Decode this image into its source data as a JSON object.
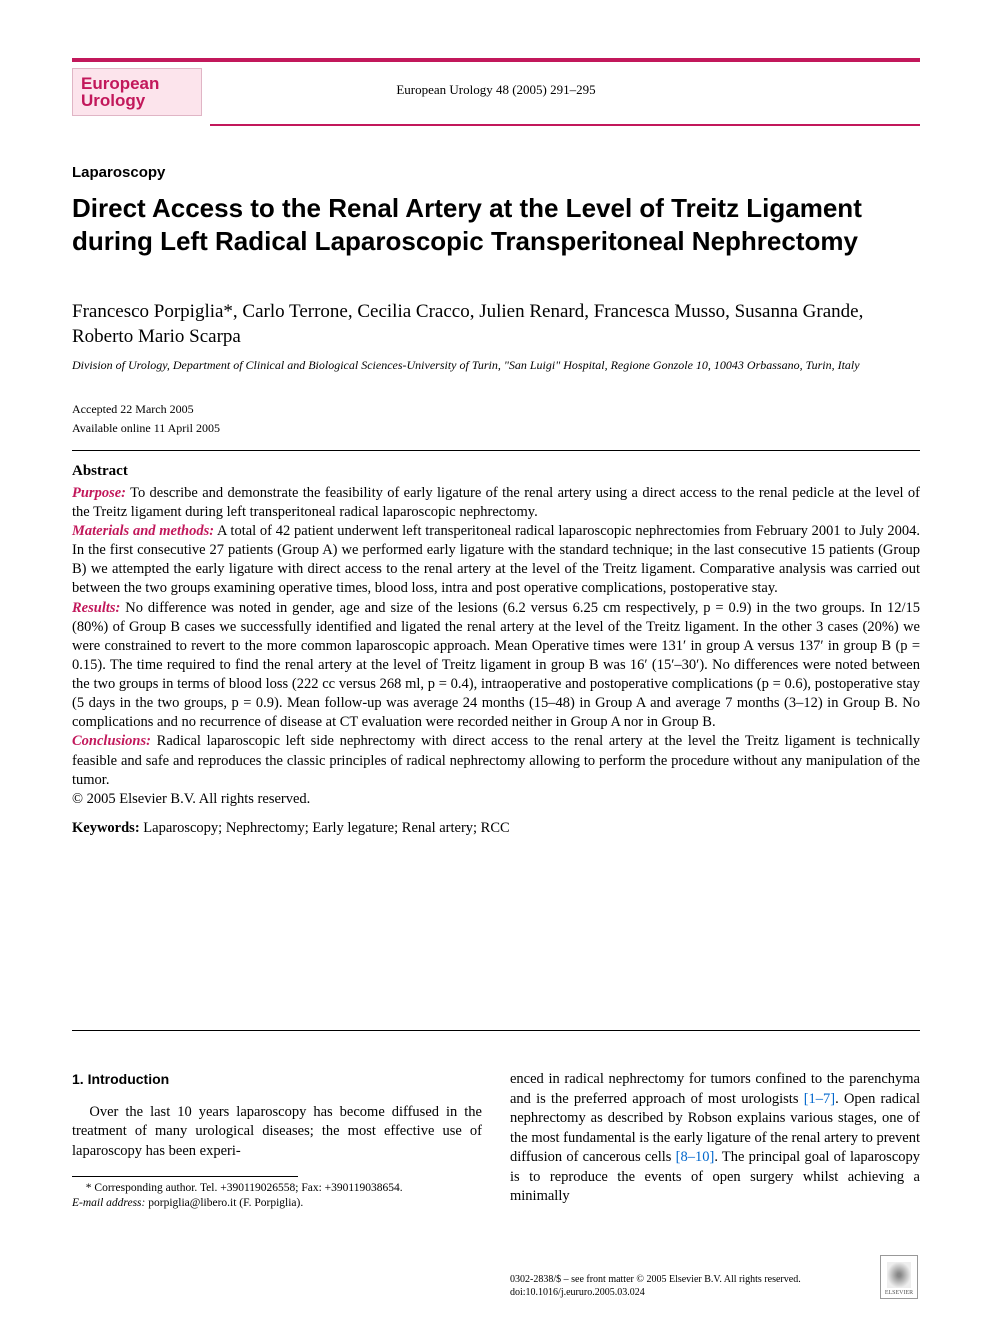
{
  "journal": {
    "logo_line1": "European",
    "logo_line2": "Urology",
    "citation": "European Urology 48 (2005) 291–295"
  },
  "section_label": "Laparoscopy",
  "title": "Direct Access to the Renal Artery at the Level of Treitz Ligament during Left Radical Laparoscopic Transperitoneal Nephrectomy",
  "authors_html": "Francesco Porpiglia*, Carlo Terrone, Cecilia Cracco, Julien Renard, Francesca Musso, Susanna Grande, Roberto Mario Scarpa",
  "affiliation": "Division of Urology, Department of Clinical and Biological Sciences-University of Turin, \"San Luigi\" Hospital, Regione Gonzole 10, 10043 Orbassano, Turin, Italy",
  "dates": {
    "accepted": "Accepted 22 March 2005",
    "online": "Available online 11 April 2005"
  },
  "abstract": {
    "heading": "Abstract",
    "purpose_label": "Purpose:",
    "purpose_text": " To describe and demonstrate the feasibility of early ligature of the renal artery using a direct access to the renal pedicle at the level of the Treitz ligament during left transperitoneal radical laparoscopic nephrectomy.",
    "materials_label": "Materials and methods:",
    "materials_text": " A total of 42 patient underwent left transperitoneal radical laparoscopic nephrectomies from February 2001 to July 2004. In the first consecutive 27 patients (Group A) we performed early ligature with the standard technique; in the last consecutive 15 patients (Group B) we attempted the early ligature with direct access to the renal artery at the level of the Treitz ligament. Comparative analysis was carried out between the two groups examining operative times, blood loss, intra and post operative complications, postoperative stay.",
    "results_label": "Results:",
    "results_text": " No difference was noted in gender, age and size of the lesions (6.2 versus 6.25 cm respectively, p = 0.9) in the two groups. In 12/15 (80%) of Group B cases we successfully identified and ligated the renal artery at the level of the Treitz ligament. In the other 3 cases (20%) we were constrained to revert to the more common laparoscopic approach. Mean Operative times were 131′ in group A versus 137′ in group B (p = 0.15). The time required to find the renal artery at the level of Treitz ligament in group B was 16′ (15′–30′). No differences were noted between the two groups in terms of blood loss (222 cc versus 268 ml, p = 0.4), intraoperative and postoperative complications (p = 0.6), postoperative stay (5 days in the two groups, p = 0.9). Mean follow-up was average 24 months (15–48) in Group A and average 7 months (3–12) in Group B. No complications and no recurrence of disease at CT evaluation were recorded neither in Group A nor in Group B.",
    "conclusions_label": "Conclusions:",
    "conclusions_text": " Radical laparoscopic left side nephrectomy with direct access to the renal artery at the level the Treitz ligament is technically feasible and safe and reproduces the classic principles of radical nephrectomy allowing to perform the procedure without any manipulation of the tumor.",
    "copyright": "© 2005 Elsevier B.V. All rights reserved.",
    "keywords_label": "Keywords:",
    "keywords_text": " Laparoscopy; Nephrectomy; Early legature; Renal artery; RCC"
  },
  "body": {
    "intro_heading": "1.  Introduction",
    "col1_p1": "Over the last 10 years laparoscopy has become diffused in the treatment of many urological diseases; the most effective use of laparoscopy has been experi-",
    "col2_p1a": "enced in radical nephrectomy for tumors confined to the parenchyma and is the preferred approach of most urologists ",
    "col2_ref1": "[1–7]",
    "col2_p1b": ". Open radical nephrectomy as described by Robson explains various stages, one of the most fundamental is the early ligature of the renal artery to prevent diffusion of cancerous cells ",
    "col2_ref2": "[8–10]",
    "col2_p1c": ". The principal goal of laparoscopy is to reproduce the events of open surgery whilst achieving a minimally"
  },
  "corresponding": {
    "line1": "* Corresponding author. Tel. +390119026558; Fax: +390119038654.",
    "line2_label": "E-mail address:",
    "line2_text": " porpiglia@libero.it (F. Porpiglia)."
  },
  "footer": {
    "line1": "0302-2838/$ – see front matter © 2005 Elsevier B.V. All rights reserved.",
    "line2": "doi:10.1016/j.eururo.2005.03.024",
    "publisher": "ELSEVIER"
  },
  "colors": {
    "accent": "#c2185b",
    "logo_bg": "#fce4ec",
    "link": "#0066cc"
  }
}
